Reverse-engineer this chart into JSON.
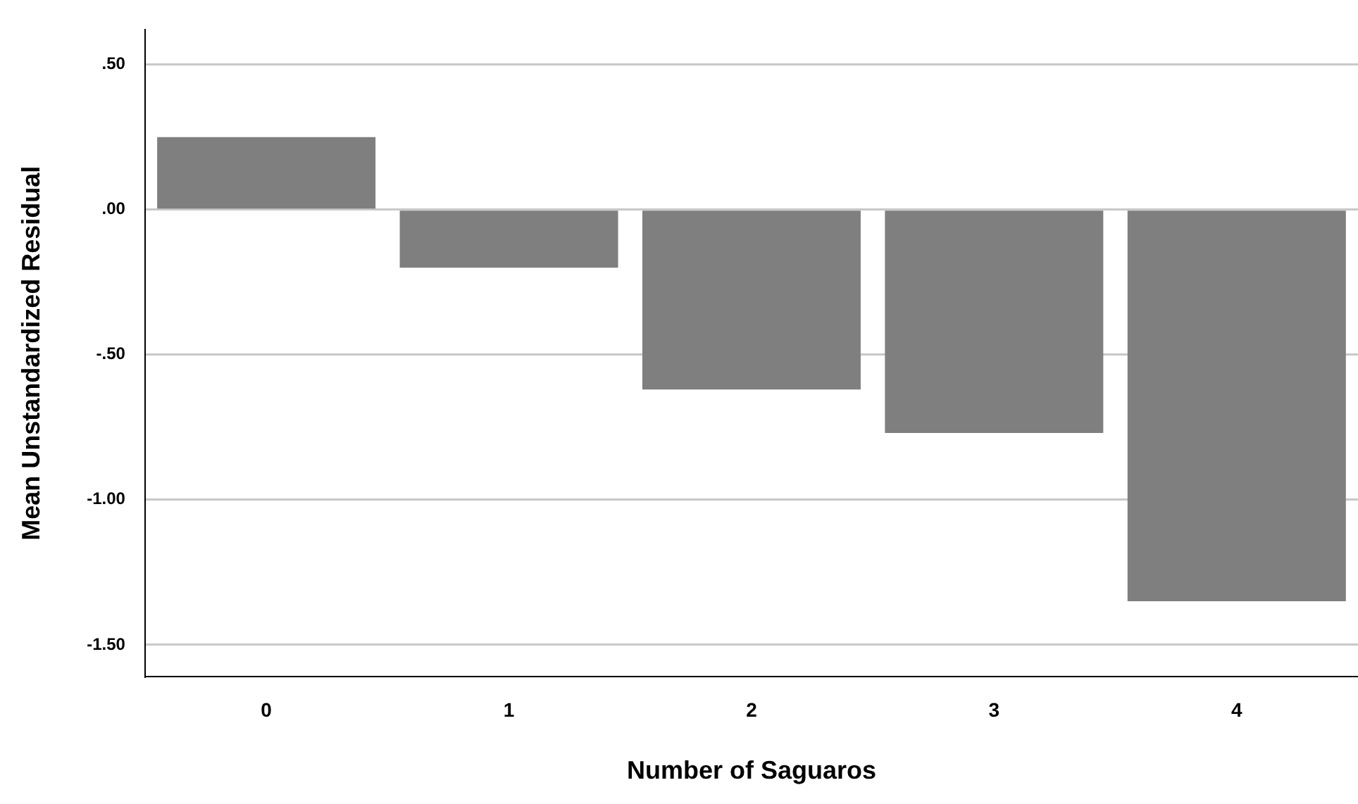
{
  "chart_data": {
    "type": "bar",
    "xlabel": "Number of Saguaros",
    "ylabel": "Mean Unstandardized Residual",
    "categories": [
      "0",
      "1",
      "2",
      "3",
      "4"
    ],
    "values": [
      0.25,
      -0.2,
      -0.62,
      -0.77,
      -1.35
    ],
    "color": "#7f7f7f",
    "ylim": [
      -1.61,
      0.62
    ],
    "yticks": [
      {
        "value": -1.5,
        "label": "-1.50"
      },
      {
        "value": -1,
        "label": "-1.00"
      },
      {
        "value": -0.5,
        "label": "-.50"
      },
      {
        "value": 0,
        "label": ".00"
      },
      {
        "value": 0.5,
        "label": ".50"
      }
    ],
    "grid": "y"
  }
}
